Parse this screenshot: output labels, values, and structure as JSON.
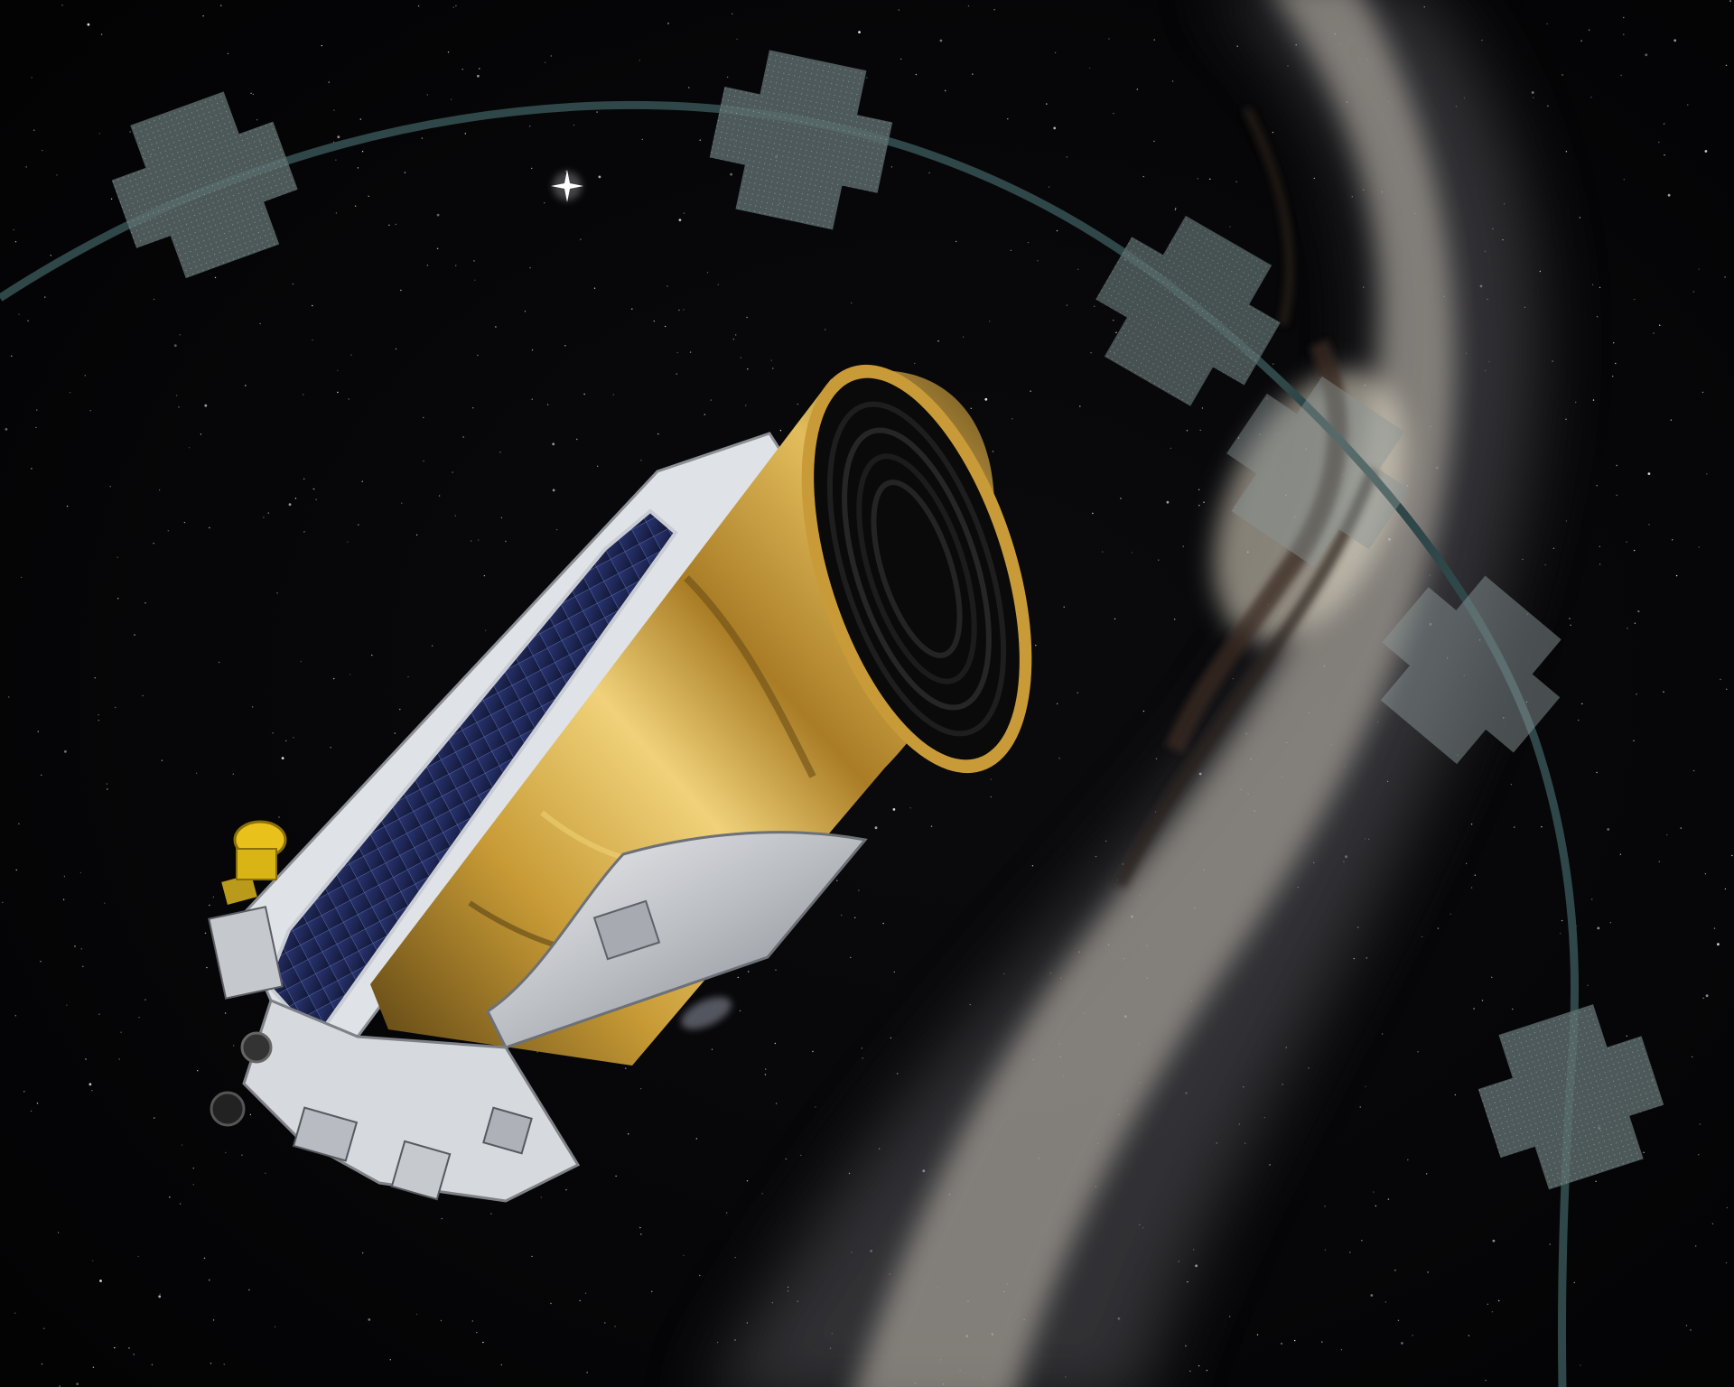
{
  "image": {
    "colors": {
      "space": "#040406",
      "milky_way_core": "#cfc7b8",
      "milky_way_dust": "#3a2c22",
      "orbit_path": "#2f4748",
      "field_patch": "#6e7d7d",
      "gold_blanket": "#b8902e",
      "gold_highlight": "#f2d77a",
      "gold_shadow": "#4a3510",
      "solar_cell": "#1c2452",
      "white_panel": "#dfe2e6",
      "sunshade_silver": "#c9ccd0",
      "aperture_black": "#0a0a0a",
      "antenna_yellow": "#e8c21a"
    }
  }
}
